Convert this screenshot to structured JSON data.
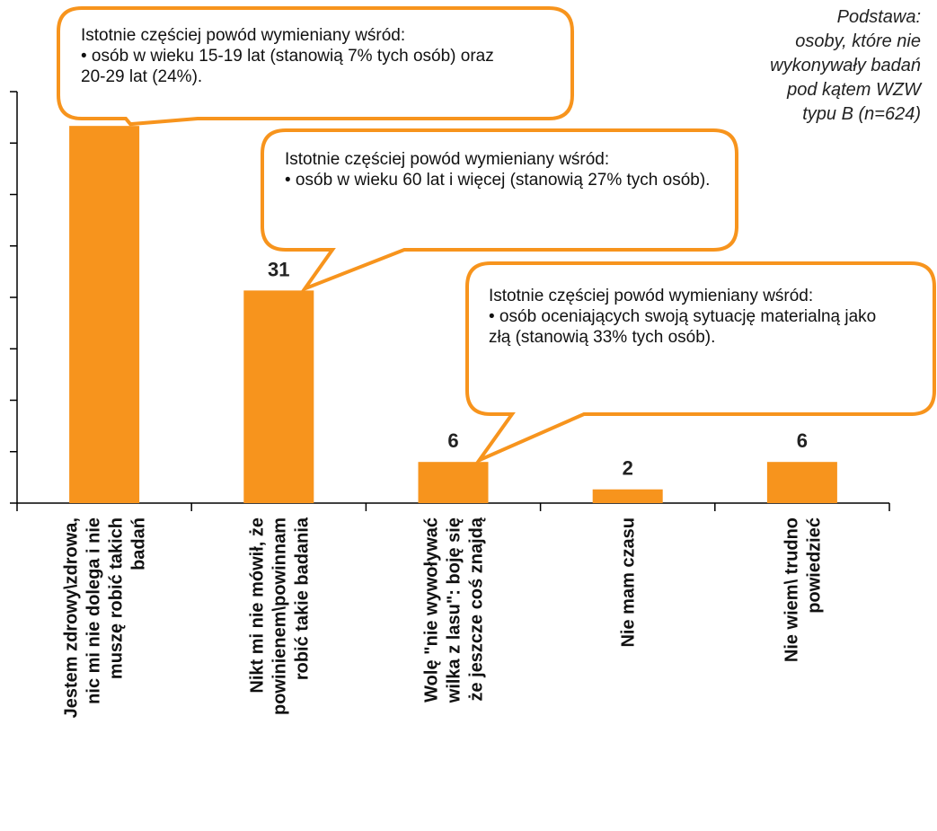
{
  "chart_data": {
    "type": "bar",
    "categories": [
      "Jestem zdrowy\\zdrowa, nic mi nie dolega i nie muszę robić takich badań",
      "Nikt mi nie mówił, że powinienem\\powinnam robić takie badania",
      "Wolę \"nie wywoływać wilka z lasu\": boję się że jeszcze coś znajdą",
      "Nie mam czasu",
      "Nie wiem\\ trudno powiedzieć"
    ],
    "category_lines": [
      [
        "Jestem zdrowy\\zdrowa,",
        "nic mi nie dolega i nie",
        "muszę robić takich",
        "badań"
      ],
      [
        "Nikt mi nie mówił, że",
        "powinienem\\powinnam",
        "robić takie badania"
      ],
      [
        "Wolę \"nie wywoływać",
        "wilka z lasu\": boję się",
        "że jeszcze coś znajdą"
      ],
      [
        "Nie mam czasu"
      ],
      [
        "Nie wiem\\ trudno",
        "powiedzieć"
      ]
    ],
    "values": [
      55,
      31,
      6,
      2,
      6
    ],
    "data_labels": [
      "55",
      "31",
      "6",
      "2",
      "6"
    ],
    "ylim": [
      0,
      60
    ],
    "y_tick_step": 7.5,
    "bar_color": "#F7941D",
    "axis_color": "#000000",
    "grid": false,
    "legend": "none",
    "annotations": [
      {
        "id": "callout-1",
        "target_category": 0,
        "lines": [
          "Istotnie częściej powód wymieniany wśród:",
          "• osób w wieku 15-19 lat (stanowią 7% tych osób) oraz 20-29 lat (24%)."
        ]
      },
      {
        "id": "callout-2",
        "target_category": 1,
        "lines": [
          "Istotnie częściej powód wymieniany wśród:",
          "• osób w wieku 60 lat i więcej (stanowią 27% tych osób)."
        ]
      },
      {
        "id": "callout-3",
        "target_category": 2,
        "lines": [
          "Istotnie częściej powód wymieniany wśród:",
          "• osób oceniających swoją sytuację materialną jako złą (stanowią 33% tych osób)."
        ]
      }
    ],
    "base_note": "Podstawa:\nosoby, które nie\nwykonywały badań\npod kątem WZW\ntypu B (n=624)"
  }
}
